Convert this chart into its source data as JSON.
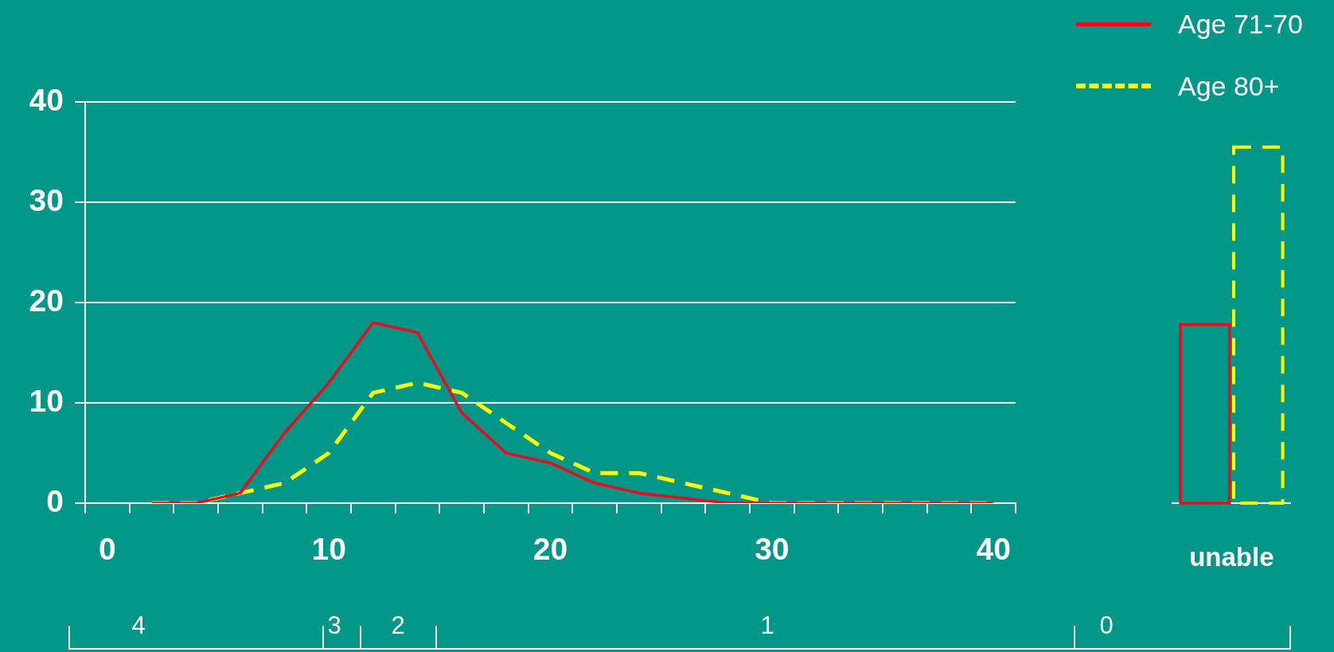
{
  "chart_data": [
    {
      "type": "line",
      "x": [
        2,
        4,
        6,
        8,
        10,
        12,
        14,
        16,
        18,
        20,
        22,
        24,
        26,
        28,
        30,
        32,
        34,
        36,
        38,
        40
      ],
      "series": [
        {
          "name": "Age 71-70",
          "color": "#ee0a1c",
          "line_style": "solid",
          "values": [
            0,
            0,
            1,
            7,
            12,
            18,
            17,
            9,
            5,
            4,
            2,
            1,
            0.5,
            0,
            0,
            0,
            0,
            0,
            0,
            0
          ]
        },
        {
          "name": "Age 80+",
          "color": "#ffff00",
          "line_style": "dashed",
          "values": [
            0,
            0,
            1,
            2,
            5,
            11,
            12,
            11,
            8,
            5,
            3,
            3,
            2,
            1,
            0,
            0,
            0,
            0,
            0,
            0
          ]
        }
      ],
      "xlim": [
        -1,
        41
      ],
      "xticks": [
        {
          "value": -1,
          "label": null
        },
        0,
        {
          "value": 1,
          "label": null
        },
        {
          "value": 3,
          "label": null
        },
        {
          "value": 5,
          "label": null
        },
        {
          "value": 7,
          "label": null
        },
        {
          "value": 9,
          "label": null
        },
        10,
        {
          "value": 11,
          "label": null
        },
        {
          "value": 13,
          "label": null
        },
        {
          "value": 15,
          "label": null
        },
        {
          "value": 17,
          "label": null
        },
        {
          "value": 19,
          "label": null
        },
        20,
        {
          "value": 21,
          "label": null
        },
        {
          "value": 23,
          "label": null
        },
        {
          "value": 25,
          "label": null
        },
        {
          "value": 27,
          "label": null
        },
        {
          "value": 29,
          "label": null
        },
        30,
        {
          "value": 31,
          "label": null
        },
        {
          "value": 33,
          "label": null
        },
        {
          "value": 35,
          "label": null
        },
        {
          "value": 37,
          "label": null
        },
        {
          "value": 39,
          "label": null
        },
        40,
        {
          "value": 41,
          "label": null
        }
      ],
      "ylim": [
        0,
        40
      ],
      "yticks": [
        0,
        10,
        20,
        30,
        40
      ],
      "grid": "y",
      "legend": "top right",
      "marker": "none",
      "annotations": [
        "4",
        "3",
        "2",
        "1",
        "0"
      ]
    },
    {
      "type": "bar",
      "categories": [
        "unable"
      ],
      "series": [
        {
          "color": "#ee0a1c",
          "line_style": "solid",
          "values": [
            17.8
          ]
        },
        {
          "color": "#ffff00",
          "line_style": "dashed",
          "values": [
            35.5
          ]
        }
      ],
      "ylim": [
        0,
        40
      ],
      "tick_labels": "x"
    }
  ]
}
